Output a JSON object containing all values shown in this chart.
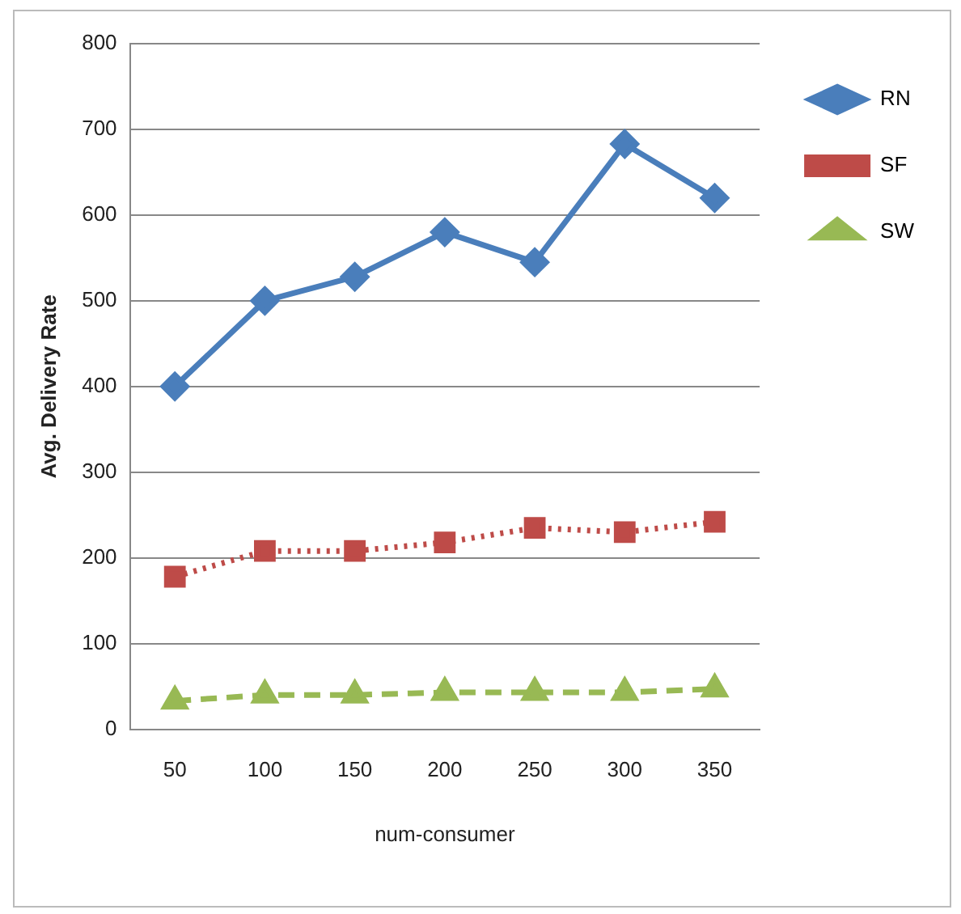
{
  "chart_data": {
    "type": "line",
    "xlabel": "num-consumer",
    "ylabel": "Avg. Delivery Rate",
    "categories": [
      "50",
      "100",
      "150",
      "200",
      "250",
      "300",
      "350"
    ],
    "series": [
      {
        "name": "RN",
        "color": "#4a7ebb",
        "values": [
          400,
          500,
          528,
          580,
          545,
          683,
          620
        ],
        "marker": "diamond",
        "line_style": "solid"
      },
      {
        "name": "SF",
        "color": "#be4b48",
        "values": [
          178,
          208,
          208,
          218,
          235,
          230,
          242
        ],
        "marker": "square",
        "line_style": "dotted"
      },
      {
        "name": "SW",
        "color": "#98b954",
        "values": [
          33,
          40,
          40,
          43,
          43,
          43,
          47
        ],
        "marker": "triangle",
        "line_style": "dashed"
      }
    ],
    "ylim": [
      0,
      800
    ],
    "yticks": [
      0,
      100,
      200,
      300,
      400,
      500,
      600,
      700,
      800
    ],
    "grid": "y",
    "legend": "right"
  }
}
